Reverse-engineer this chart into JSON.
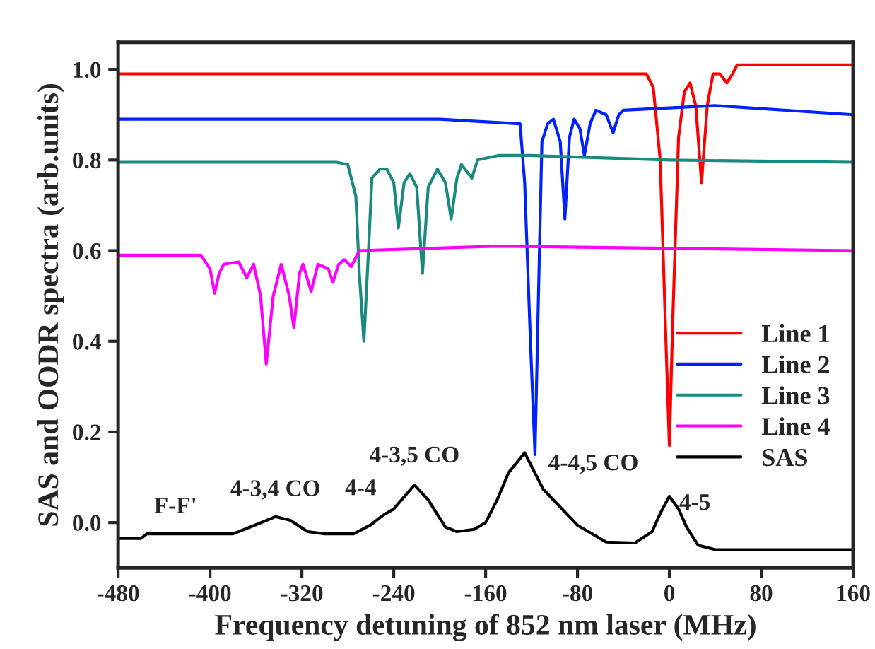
{
  "chart_data": {
    "type": "line",
    "xlabel": "Frequency detuning of 852 nm laser (MHz)",
    "ylabel": "SAS and OODR spectra (arb.units)",
    "xlim": [
      -480,
      160
    ],
    "ylim": [
      -0.1,
      1.06
    ],
    "xticks": [
      -480,
      -400,
      -320,
      -240,
      -160,
      -80,
      0,
      80,
      160
    ],
    "yticks": [
      {
        "value": 0,
        "label": "0.0"
      },
      0.2,
      0.4,
      0.6,
      0.8,
      {
        "value": 1,
        "label": "1.0"
      }
    ],
    "grid": false,
    "legend": "lower right",
    "line_style": "solid",
    "marker": "none",
    "series": [
      {
        "name": "Line 1",
        "color": "#ff0000",
        "x": [
          -480,
          -200,
          -20,
          -14,
          -8,
          -3,
          0,
          3,
          8,
          13,
          18,
          23,
          28,
          33,
          38,
          44,
          50,
          55,
          59,
          100,
          160
        ],
        "values": [
          0.99,
          0.99,
          0.99,
          0.96,
          0.8,
          0.4,
          0.17,
          0.45,
          0.85,
          0.95,
          0.97,
          0.92,
          0.75,
          0.92,
          0.99,
          0.99,
          0.97,
          0.99,
          1.01,
          1.01,
          1.01
        ]
      },
      {
        "name": "Line 2",
        "color": "#0022ff",
        "x": [
          -480,
          -200,
          -130,
          -126,
          -121,
          -117,
          -114,
          -111,
          -106,
          -101,
          -95,
          -91,
          -87,
          -83,
          -78,
          -74,
          -69,
          -64,
          -55,
          -49,
          -44,
          -40,
          40,
          160
        ],
        "values": [
          0.89,
          0.89,
          0.88,
          0.75,
          0.4,
          0.15,
          0.5,
          0.84,
          0.88,
          0.89,
          0.84,
          0.67,
          0.85,
          0.89,
          0.87,
          0.81,
          0.88,
          0.91,
          0.9,
          0.86,
          0.9,
          0.91,
          0.92,
          0.9
        ]
      },
      {
        "name": "Line 3",
        "color": "#1a8a80",
        "x": [
          -480,
          -290,
          -280,
          -273,
          -270,
          -266,
          -262,
          -259,
          -252,
          -246,
          -240,
          -236,
          -231,
          -226,
          -220,
          -215,
          -210,
          -202,
          -195,
          -190,
          -185,
          -181,
          -172,
          -167,
          -149,
          -121,
          0,
          160
        ],
        "values": [
          0.795,
          0.795,
          0.79,
          0.72,
          0.55,
          0.4,
          0.6,
          0.76,
          0.78,
          0.78,
          0.75,
          0.65,
          0.75,
          0.77,
          0.74,
          0.55,
          0.74,
          0.78,
          0.75,
          0.67,
          0.76,
          0.79,
          0.76,
          0.8,
          0.81,
          0.81,
          0.8,
          0.795
        ]
      },
      {
        "name": "Line 4",
        "color": "#ff00ff",
        "x": [
          -480,
          -408,
          -400,
          -396,
          -392,
          -388,
          -375,
          -368,
          -362,
          -356,
          -351,
          -345,
          -338,
          -331,
          -327,
          -322,
          -319,
          -312,
          -306,
          -297,
          -293,
          -288,
          -283,
          -277,
          -270,
          -150,
          160
        ],
        "values": [
          0.59,
          0.59,
          0.56,
          0.506,
          0.55,
          0.57,
          0.575,
          0.54,
          0.57,
          0.5,
          0.35,
          0.5,
          0.57,
          0.5,
          0.43,
          0.55,
          0.57,
          0.51,
          0.57,
          0.56,
          0.53,
          0.57,
          0.58,
          0.565,
          0.6,
          0.61,
          0.6
        ]
      },
      {
        "name": "SAS",
        "color": "#000000",
        "x": [
          -480,
          -460,
          -455,
          -380,
          -365,
          -343,
          -330,
          -315,
          -300,
          -275,
          -260,
          -250,
          -240,
          -222,
          -210,
          -195,
          -185,
          -170,
          -160,
          -150,
          -140,
          -126,
          -110,
          -80,
          -55,
          -30,
          -15,
          -8,
          0,
          8,
          15,
          25,
          40,
          160
        ],
        "values": [
          -0.035,
          -0.035,
          -0.025,
          -0.025,
          -0.01,
          0.013,
          0.005,
          -0.02,
          -0.025,
          -0.025,
          -0.005,
          0.015,
          0.03,
          0.083,
          0.05,
          -0.01,
          -0.02,
          -0.015,
          0.0,
          0.05,
          0.11,
          0.154,
          0.074,
          -0.006,
          -0.043,
          -0.045,
          -0.02,
          0.02,
          0.058,
          0.03,
          -0.01,
          -0.05,
          -0.06,
          -0.06
        ]
      }
    ],
    "annotations": [
      {
        "text": "F-F'",
        "x": -430,
        "y": -0.025
      },
      {
        "text": "4-3,4 CO",
        "x": -343,
        "y": 0.013
      },
      {
        "text": "4-4",
        "x": -250,
        "y": 0.015
      },
      {
        "text": "4-3,5 CO",
        "x": -222,
        "y": 0.083
      },
      {
        "text": "4-4,5 CO",
        "x": -126,
        "y": 0.154
      },
      {
        "text": "4-5",
        "x": 0,
        "y": 0.058
      }
    ]
  }
}
